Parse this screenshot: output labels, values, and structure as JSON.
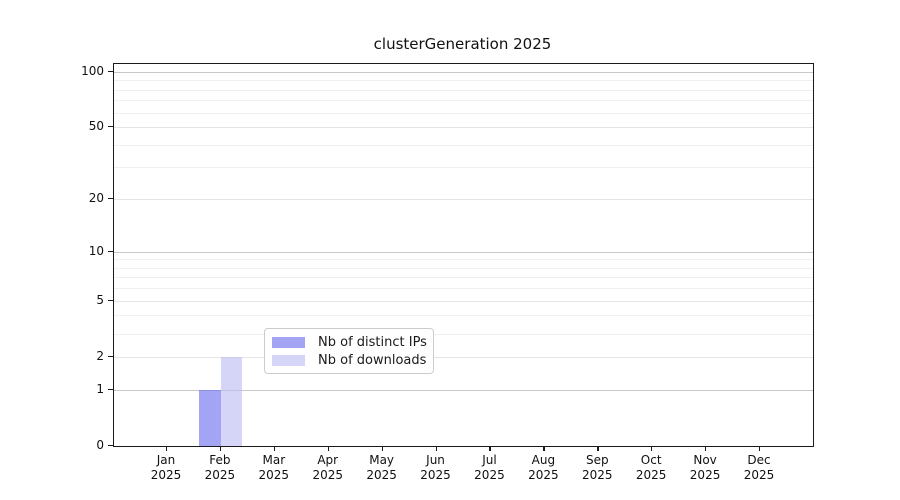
{
  "page": {
    "background": "#ffffff"
  },
  "chart_data": {
    "type": "bar",
    "title": "clusterGeneration 2025",
    "categories": [
      "Jan 2025",
      "Feb 2025",
      "Mar 2025",
      "Apr 2025",
      "May 2025",
      "Jun 2025",
      "Jul 2025",
      "Aug 2025",
      "Sep 2025",
      "Oct 2025",
      "Nov 2025",
      "Dec 2025"
    ],
    "series": [
      {
        "name": "Nb of distinct IPs",
        "color": "#6c6cee",
        "alpha": 0.62,
        "values": [
          0,
          1,
          0,
          0,
          0,
          0,
          0,
          0,
          0,
          0,
          0,
          0
        ]
      },
      {
        "name": "Nb of downloads",
        "color": "#bcbcf3",
        "alpha": 0.62,
        "values": [
          0,
          2,
          0,
          0,
          0,
          0,
          0,
          0,
          0,
          0,
          0,
          0
        ]
      }
    ],
    "xlabel": "",
    "ylabel": "",
    "yscale": "log1p",
    "ylim": [
      0,
      110
    ],
    "y_major_ticks": [
      0,
      1,
      2,
      5,
      10,
      20,
      50,
      100
    ],
    "y_minor_ticks": [
      3,
      4,
      6,
      7,
      8,
      9,
      30,
      40,
      60,
      70,
      80,
      90
    ],
    "grid": "horizontal",
    "legend_position": "inside-lower-center"
  },
  "colors": {
    "grid_strong": "#c8c8c8",
    "grid_mid": "#e4e4e4",
    "grid_minor": "#f0f0f0",
    "spine": "#1a1a1a",
    "text": "#111111",
    "legend_border": "#cccccc",
    "legend_bg": "#ffffff"
  }
}
